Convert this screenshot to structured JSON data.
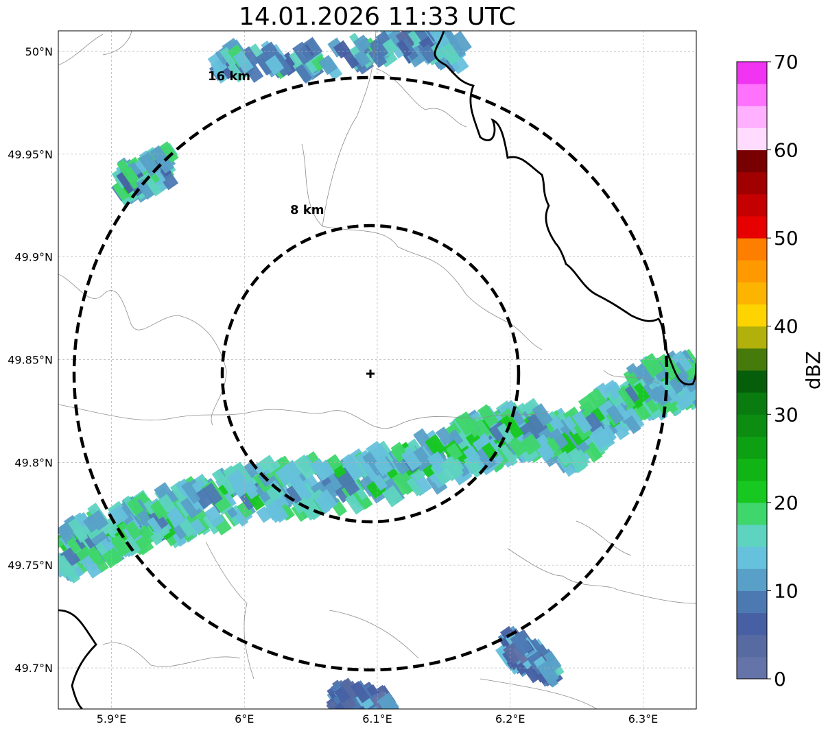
{
  "title": "14.01.2026 11:33 UTC",
  "map": {
    "lon_range": [
      5.86,
      6.34
    ],
    "lat_range": [
      49.68,
      50.01
    ],
    "lon_ticks": [
      {
        "value": 5.9,
        "label": "5.9°E"
      },
      {
        "value": 6.0,
        "label": "6°E"
      },
      {
        "value": 6.1,
        "label": "6.1°E"
      },
      {
        "value": 6.2,
        "label": "6.2°E"
      },
      {
        "value": 6.3,
        "label": "6.3°E"
      }
    ],
    "lat_ticks": [
      {
        "value": 49.7,
        "label": "49.7°N"
      },
      {
        "value": 49.75,
        "label": "49.75°N"
      },
      {
        "value": 49.8,
        "label": "49.8°N"
      },
      {
        "value": 49.85,
        "label": "49.85°N"
      },
      {
        "value": 49.9,
        "label": "49.9°N"
      },
      {
        "value": 49.95,
        "label": "49.95°N"
      },
      {
        "value": 50.0,
        "label": "50°N"
      }
    ],
    "grid": true,
    "radar_center": {
      "lon": 6.095,
      "lat": 49.844
    },
    "range_rings": [
      {
        "label": "8 km",
        "km": 8
      },
      {
        "label": "16 km",
        "km": 16
      }
    ]
  },
  "colorbar": {
    "label": "dBZ",
    "ticks": [
      "0",
      "10",
      "20",
      "30",
      "40",
      "50",
      "60",
      "70"
    ],
    "colors": [
      "#6474a8",
      "#576aa2",
      "#4760a3",
      "#4d79b3",
      "#58a0c8",
      "#66c1dc",
      "#5ed3c0",
      "#3fd66c",
      "#16c81f",
      "#10b414",
      "#0ea013",
      "#0c8c11",
      "#0a7c0f",
      "#065e0b",
      "#467a0a",
      "#b2b00a",
      "#fdd400",
      "#fdb400",
      "#fe9a00",
      "#fe7e00",
      "#e60000",
      "#c40000",
      "#a00000",
      "#780000",
      "#ffdcfe",
      "#ffb0fe",
      "#ff72fe",
      "#f134f1"
    ]
  },
  "echo_bands": [
    {
      "name": "main-band",
      "lon": [
        5.86,
        5.92,
        6.0,
        6.08,
        6.16,
        6.2,
        6.25,
        6.3,
        6.34
      ],
      "lat": [
        49.755,
        49.77,
        49.785,
        49.79,
        49.805,
        49.815,
        49.81,
        49.835,
        49.84
      ],
      "dbz": 15
    },
    {
      "name": "north-cell",
      "lon": [
        5.91,
        5.94
      ],
      "lat": [
        49.935,
        49.945
      ],
      "dbz": 14
    },
    {
      "name": "top-cells",
      "lon": [
        5.98,
        6.05,
        6.12,
        6.16
      ],
      "lat": [
        49.995,
        49.995,
        50.005,
        50.0
      ],
      "dbz": 12
    },
    {
      "name": "south-cell-east",
      "lon": [
        6.2,
        6.23
      ],
      "lat": [
        49.71,
        49.7
      ],
      "dbz": 9
    },
    {
      "name": "south-cell-west",
      "lon": [
        6.07,
        6.11
      ],
      "lat": [
        49.685,
        49.68
      ],
      "dbz": 7
    }
  ]
}
